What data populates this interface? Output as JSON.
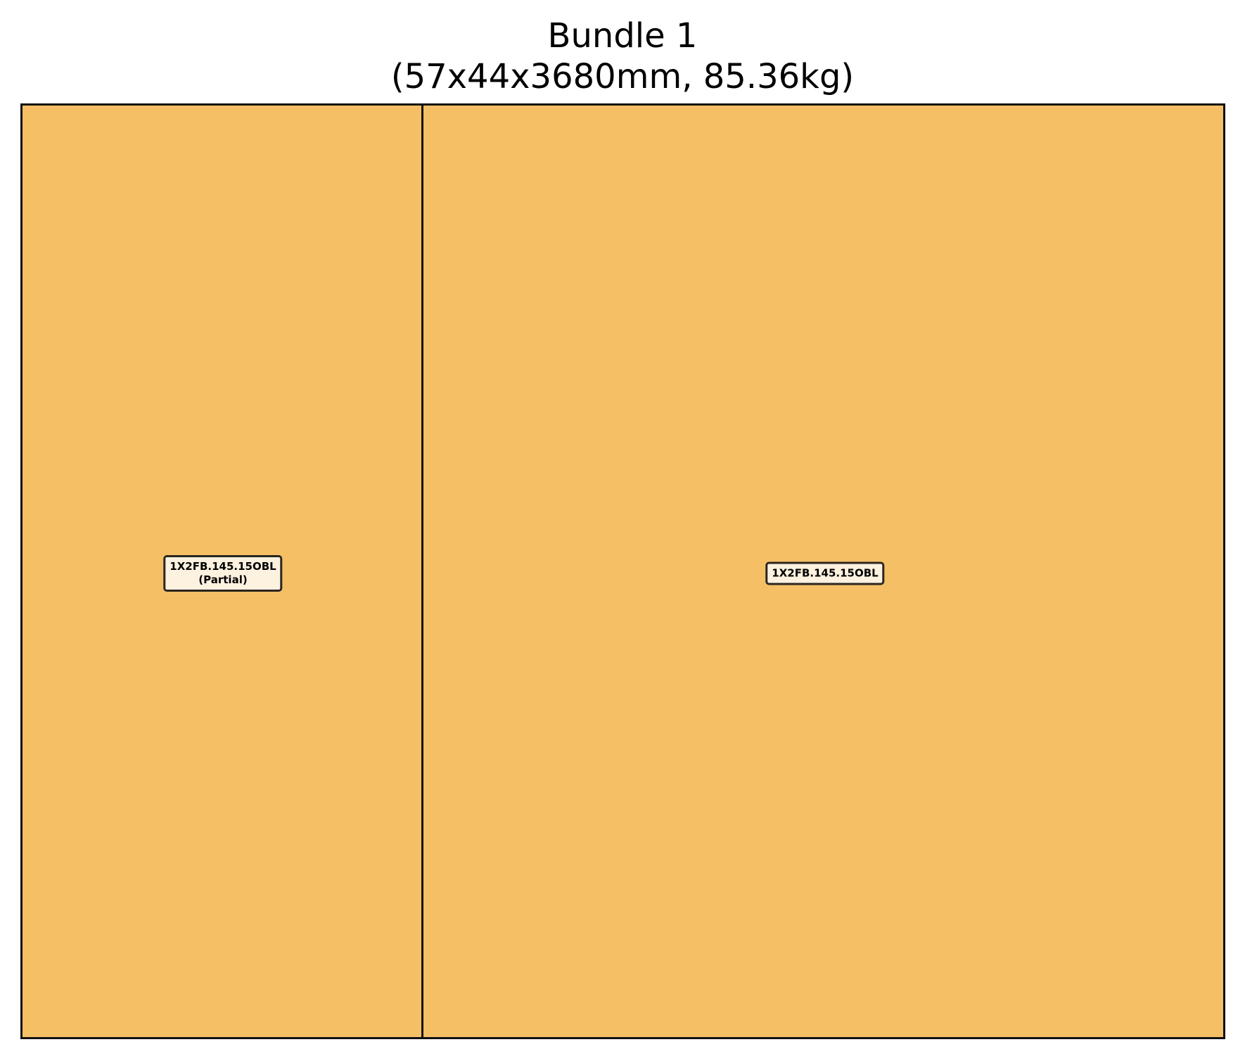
{
  "title": {
    "line1": "Bundle 1",
    "line2": "(57x44x3680mm, 85.36kg)"
  },
  "pieces": [
    {
      "code": "1X2FB.145.15OBL",
      "note": "(Partial)"
    },
    {
      "code": "1X2FB.145.15OBL"
    }
  ],
  "colors": {
    "piece_fill": "#f5bf66",
    "outline": "#111111",
    "label_fill": "#fdf1df"
  }
}
